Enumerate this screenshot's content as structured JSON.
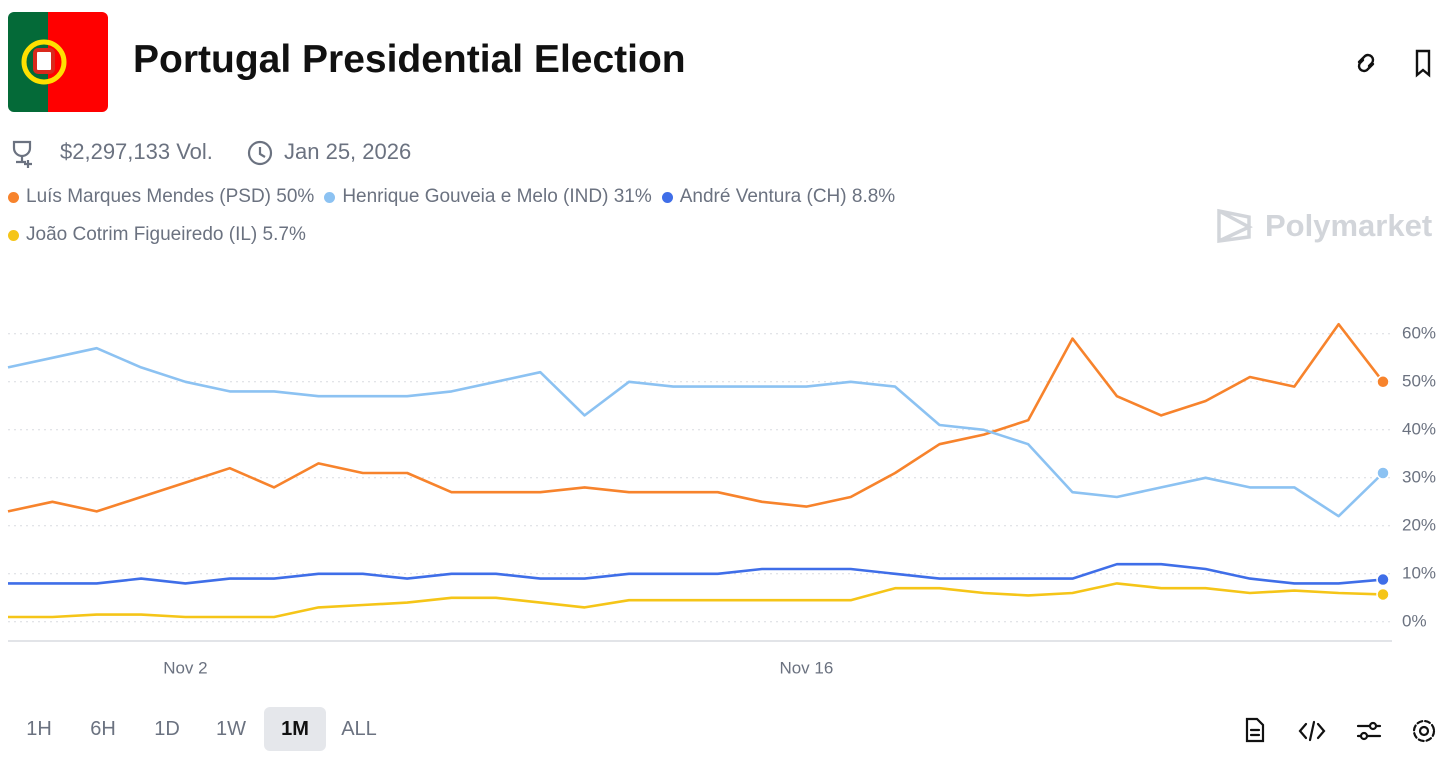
{
  "header": {
    "title": "Portugal Presidential Election",
    "volume": "$2,297,133 Vol.",
    "date": "Jan 25, 2026",
    "brand": "Polymarket"
  },
  "time_ranges": [
    "1H",
    "6H",
    "1D",
    "1W",
    "1M",
    "ALL"
  ],
  "selected_range": "1M",
  "chart_data": {
    "type": "line",
    "categories": [
      null,
      null,
      null,
      null,
      "Nov 2",
      null,
      null,
      null,
      null,
      null,
      null,
      null,
      null,
      null,
      null,
      null,
      null,
      null,
      "Nov 16",
      null,
      null,
      null,
      null,
      null,
      null,
      null,
      null,
      null,
      null,
      null,
      null,
      null
    ],
    "series": [
      {
        "name": "Luís Marques Mendes (PSD)",
        "legend_label": "50%",
        "color": "#f7832c",
        "values": [
          23,
          25,
          23,
          26,
          29,
          32,
          28,
          33,
          31,
          31,
          27,
          27,
          27,
          28,
          27,
          27,
          27,
          25,
          24,
          26,
          31,
          37,
          39,
          42,
          59,
          47,
          43,
          46,
          51,
          49,
          62,
          50
        ]
      },
      {
        "name": "Henrique Gouveia e Melo (IND)",
        "legend_label": "31%",
        "color": "#8cc2f2",
        "values": [
          53,
          55,
          57,
          53,
          50,
          48,
          48,
          47,
          47,
          47,
          48,
          50,
          52,
          43,
          50,
          49,
          49,
          49,
          49,
          50,
          49,
          41,
          40,
          37,
          27,
          26,
          28,
          30,
          28,
          28,
          22,
          31
        ]
      },
      {
        "name": "André Ventura (CH)",
        "legend_label": "8.8%",
        "color": "#3f6ee8",
        "values": [
          8,
          8,
          8,
          9,
          8,
          9,
          9,
          10,
          10,
          9,
          10,
          10,
          9,
          9,
          10,
          10,
          10,
          11,
          11,
          11,
          10,
          9,
          9,
          9,
          9,
          12,
          12,
          11,
          9,
          8,
          8,
          8.8
        ]
      },
      {
        "name": "João Cotrim Figueiredo (IL)",
        "legend_label": "5.7%",
        "color": "#f5c518",
        "values": [
          1,
          1,
          1.5,
          1.5,
          1,
          1,
          1,
          3,
          3.5,
          4,
          5,
          5,
          4,
          3,
          4.5,
          4.5,
          4.5,
          4.5,
          4.5,
          4.5,
          7,
          7,
          6,
          5.5,
          6,
          8,
          7,
          7,
          6,
          6.5,
          6,
          5.7
        ]
      }
    ],
    "ylim": [
      -4,
      66
    ],
    "yticks": [
      {
        "value": 0,
        "label": "0%"
      },
      {
        "value": 10,
        "label": "10%"
      },
      {
        "value": 20,
        "label": "20%"
      },
      {
        "value": 30,
        "label": "30%"
      },
      {
        "value": 40,
        "label": "40%"
      },
      {
        "value": 50,
        "label": "50%"
      },
      {
        "value": 60,
        "label": "60%"
      }
    ],
    "grid": true
  }
}
